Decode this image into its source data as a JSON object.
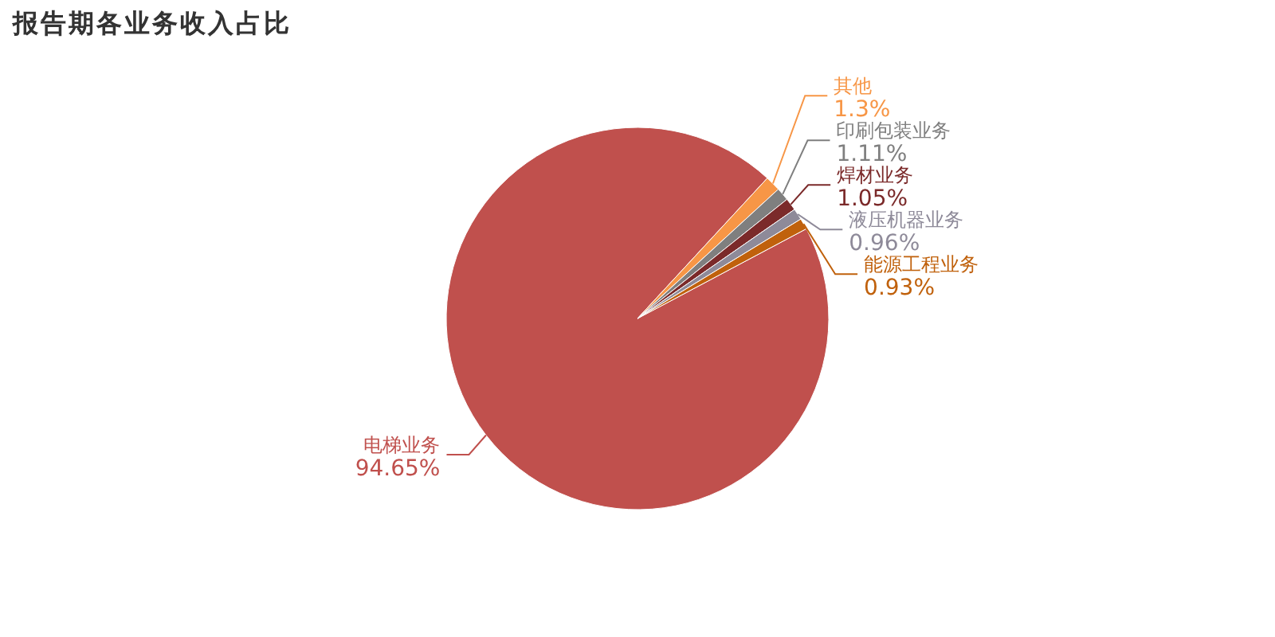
{
  "chart_data": {
    "type": "pie",
    "title": "报告期各业务收入占比",
    "categories": [
      "电梯业务",
      "其他",
      "印刷包装业务",
      "焊材业务",
      "液压机器业务",
      "能源工程业务"
    ],
    "values": [
      94.65,
      1.3,
      1.11,
      1.05,
      0.96,
      0.93
    ],
    "colors": [
      "#c0504d",
      "#f79646",
      "#7f7f7f",
      "#7b2a2a",
      "#8e8a99",
      "#c0610c"
    ],
    "value_labels": [
      "94.65%",
      "1.3%",
      "1.11%",
      "1.05%",
      "0.96%",
      "0.93%"
    ]
  }
}
